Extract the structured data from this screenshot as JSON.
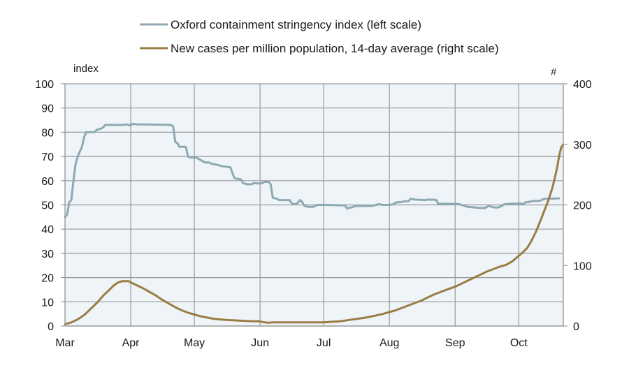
{
  "chart_data": {
    "type": "line",
    "title": "",
    "legend": {
      "placement": "top-center",
      "entries": [
        {
          "name": "Oxford containment stringency index (left scale)",
          "color": "#8fa9b4"
        },
        {
          "name": "New cases per million population, 14-day average (right scale)",
          "color": "#9a7d45"
        }
      ]
    },
    "y_left": {
      "label": "index",
      "ylim": [
        0,
        100
      ],
      "ticks": [
        0,
        10,
        20,
        30,
        40,
        50,
        60,
        70,
        80,
        90,
        100
      ]
    },
    "y_right": {
      "label": "#",
      "ylim": [
        0,
        400
      ],
      "ticks": [
        0,
        100,
        200,
        300,
        400
      ]
    },
    "x": {
      "label": "",
      "unit": "days since 1 Mar",
      "xlim": [
        0,
        235
      ],
      "ticks": [
        {
          "label": "Mar",
          "day": 0
        },
        {
          "label": "Apr",
          "day": 31
        },
        {
          "label": "May",
          "day": 61
        },
        {
          "label": "Jun",
          "day": 92
        },
        {
          "label": "Jul",
          "day": 122
        },
        {
          "label": "Aug",
          "day": 153
        },
        {
          "label": "Sep",
          "day": 184
        },
        {
          "label": "Oct",
          "day": 214
        }
      ]
    },
    "grid": true,
    "colors": {
      "plot_background": "#eef4f8",
      "grid": "#9a9a9a",
      "stringency": "#8fa9b4",
      "cases": "#9a7d45"
    },
    "series": [
      {
        "name": "Oxford containment stringency index (left scale)",
        "axis": "left",
        "points": [
          [
            0,
            45
          ],
          [
            1,
            46
          ],
          [
            2,
            51
          ],
          [
            3,
            52
          ],
          [
            4,
            60
          ],
          [
            5,
            67
          ],
          [
            6,
            70
          ],
          [
            7,
            72
          ],
          [
            8,
            74
          ],
          [
            9,
            78
          ],
          [
            10,
            80
          ],
          [
            12,
            80
          ],
          [
            14,
            80
          ],
          [
            15,
            81
          ],
          [
            17,
            81.5
          ],
          [
            18,
            82
          ],
          [
            19,
            83
          ],
          [
            22,
            83
          ],
          [
            26,
            83
          ],
          [
            28,
            83
          ],
          [
            29,
            83.3
          ],
          [
            30,
            83
          ],
          [
            31,
            82.8
          ],
          [
            32,
            83.5
          ],
          [
            34,
            83.2
          ],
          [
            38,
            83.2
          ],
          [
            45,
            83.1
          ],
          [
            50,
            83
          ],
          [
            51,
            82.5
          ],
          [
            52,
            76
          ],
          [
            53,
            75.5
          ],
          [
            54,
            74
          ],
          [
            57,
            74
          ],
          [
            58,
            70
          ],
          [
            59,
            69.5
          ],
          [
            62,
            69.5
          ],
          [
            64,
            68.5
          ],
          [
            66,
            67.5
          ],
          [
            68,
            67.5
          ],
          [
            69,
            67
          ],
          [
            72,
            66.5
          ],
          [
            74,
            66
          ],
          [
            78,
            65.5
          ],
          [
            79,
            63
          ],
          [
            80,
            61
          ],
          [
            83,
            60.5
          ],
          [
            84,
            59
          ],
          [
            86,
            58.5
          ],
          [
            88,
            58.5
          ],
          [
            89,
            59
          ],
          [
            92,
            58.8
          ],
          [
            93,
            59
          ],
          [
            94,
            59.5
          ],
          [
            96,
            59.5
          ],
          [
            97,
            58.5
          ],
          [
            98,
            53
          ],
          [
            100,
            52.5
          ],
          [
            101,
            52
          ],
          [
            106,
            52
          ],
          [
            107,
            50.5
          ],
          [
            109,
            50.3
          ],
          [
            111,
            52
          ],
          [
            112,
            51
          ],
          [
            113,
            49.5
          ],
          [
            115,
            49.2
          ],
          [
            117,
            49.2
          ],
          [
            119,
            50
          ],
          [
            124,
            50
          ],
          [
            132,
            49.8
          ],
          [
            133,
            48.5
          ],
          [
            135,
            49
          ],
          [
            137,
            49.5
          ],
          [
            145,
            49.6
          ],
          [
            148,
            50.3
          ],
          [
            150,
            50
          ],
          [
            153,
            50
          ],
          [
            155,
            50.3
          ],
          [
            156,
            51
          ],
          [
            159,
            51.2
          ],
          [
            160,
            51.5
          ],
          [
            162,
            51.5
          ],
          [
            163,
            52.5
          ],
          [
            165,
            52.2
          ],
          [
            170,
            52
          ],
          [
            171,
            52.2
          ],
          [
            175,
            52.1
          ],
          [
            176,
            50.5
          ],
          [
            182,
            50.4
          ],
          [
            186,
            50.3
          ],
          [
            190,
            49.2
          ],
          [
            195,
            48.8
          ],
          [
            198,
            48.7
          ],
          [
            199,
            49.2
          ],
          [
            200,
            49.6
          ],
          [
            202,
            49
          ],
          [
            204,
            48.9
          ],
          [
            206,
            49.5
          ],
          [
            207,
            50.2
          ],
          [
            209,
            50.4
          ],
          [
            211,
            50.5
          ],
          [
            213,
            50.4
          ],
          [
            214,
            50.7
          ],
          [
            216,
            50.3
          ],
          [
            217,
            51
          ],
          [
            219,
            51.3
          ],
          [
            221,
            51.6
          ],
          [
            224,
            51.7
          ],
          [
            226,
            52.5
          ],
          [
            230,
            52.6
          ],
          [
            233,
            52.7
          ]
        ]
      },
      {
        "name": "New cases per million population, 14-day average (right scale)",
        "axis": "right",
        "points": [
          [
            0,
            3
          ],
          [
            3,
            6
          ],
          [
            6,
            11
          ],
          [
            9,
            18
          ],
          [
            12,
            28
          ],
          [
            15,
            38
          ],
          [
            18,
            50
          ],
          [
            21,
            60
          ],
          [
            23,
            67
          ],
          [
            25,
            72
          ],
          [
            27,
            74
          ],
          [
            30,
            74
          ],
          [
            31,
            72
          ],
          [
            34,
            67
          ],
          [
            37,
            62
          ],
          [
            40,
            56
          ],
          [
            43,
            50
          ],
          [
            46,
            43
          ],
          [
            49,
            37
          ],
          [
            52,
            31
          ],
          [
            55,
            26
          ],
          [
            58,
            22
          ],
          [
            61,
            19
          ],
          [
            64,
            16
          ],
          [
            67,
            14
          ],
          [
            70,
            12
          ],
          [
            73,
            11
          ],
          [
            76,
            10
          ],
          [
            79,
            9.5
          ],
          [
            82,
            9
          ],
          [
            85,
            8.5
          ],
          [
            88,
            8
          ],
          [
            91,
            8
          ],
          [
            92,
            7.5
          ],
          [
            94,
            6
          ],
          [
            96,
            5.5
          ],
          [
            98,
            6
          ],
          [
            102,
            6
          ],
          [
            110,
            6
          ],
          [
            120,
            6
          ],
          [
            122,
            6
          ],
          [
            126,
            7
          ],
          [
            130,
            8
          ],
          [
            134,
            10
          ],
          [
            138,
            12
          ],
          [
            142,
            14
          ],
          [
            146,
            17
          ],
          [
            150,
            20
          ],
          [
            153,
            23
          ],
          [
            156,
            26
          ],
          [
            159,
            30
          ],
          [
            162,
            34
          ],
          [
            165,
            38
          ],
          [
            168,
            42
          ],
          [
            171,
            47
          ],
          [
            174,
            52
          ],
          [
            177,
            56
          ],
          [
            180,
            60
          ],
          [
            184,
            65
          ],
          [
            187,
            70
          ],
          [
            190,
            75
          ],
          [
            193,
            80
          ],
          [
            196,
            85
          ],
          [
            199,
            90
          ],
          [
            202,
            94
          ],
          [
            205,
            98
          ],
          [
            208,
            101
          ],
          [
            211,
            107
          ],
          [
            214,
            116
          ],
          [
            216,
            122
          ],
          [
            218,
            129
          ],
          [
            220,
            141
          ],
          [
            222,
            155
          ],
          [
            224,
            172
          ],
          [
            226,
            190
          ],
          [
            228,
            208
          ],
          [
            230,
            230
          ],
          [
            232,
            260
          ],
          [
            233,
            280
          ],
          [
            234,
            295
          ],
          [
            235,
            300
          ]
        ]
      }
    ]
  }
}
